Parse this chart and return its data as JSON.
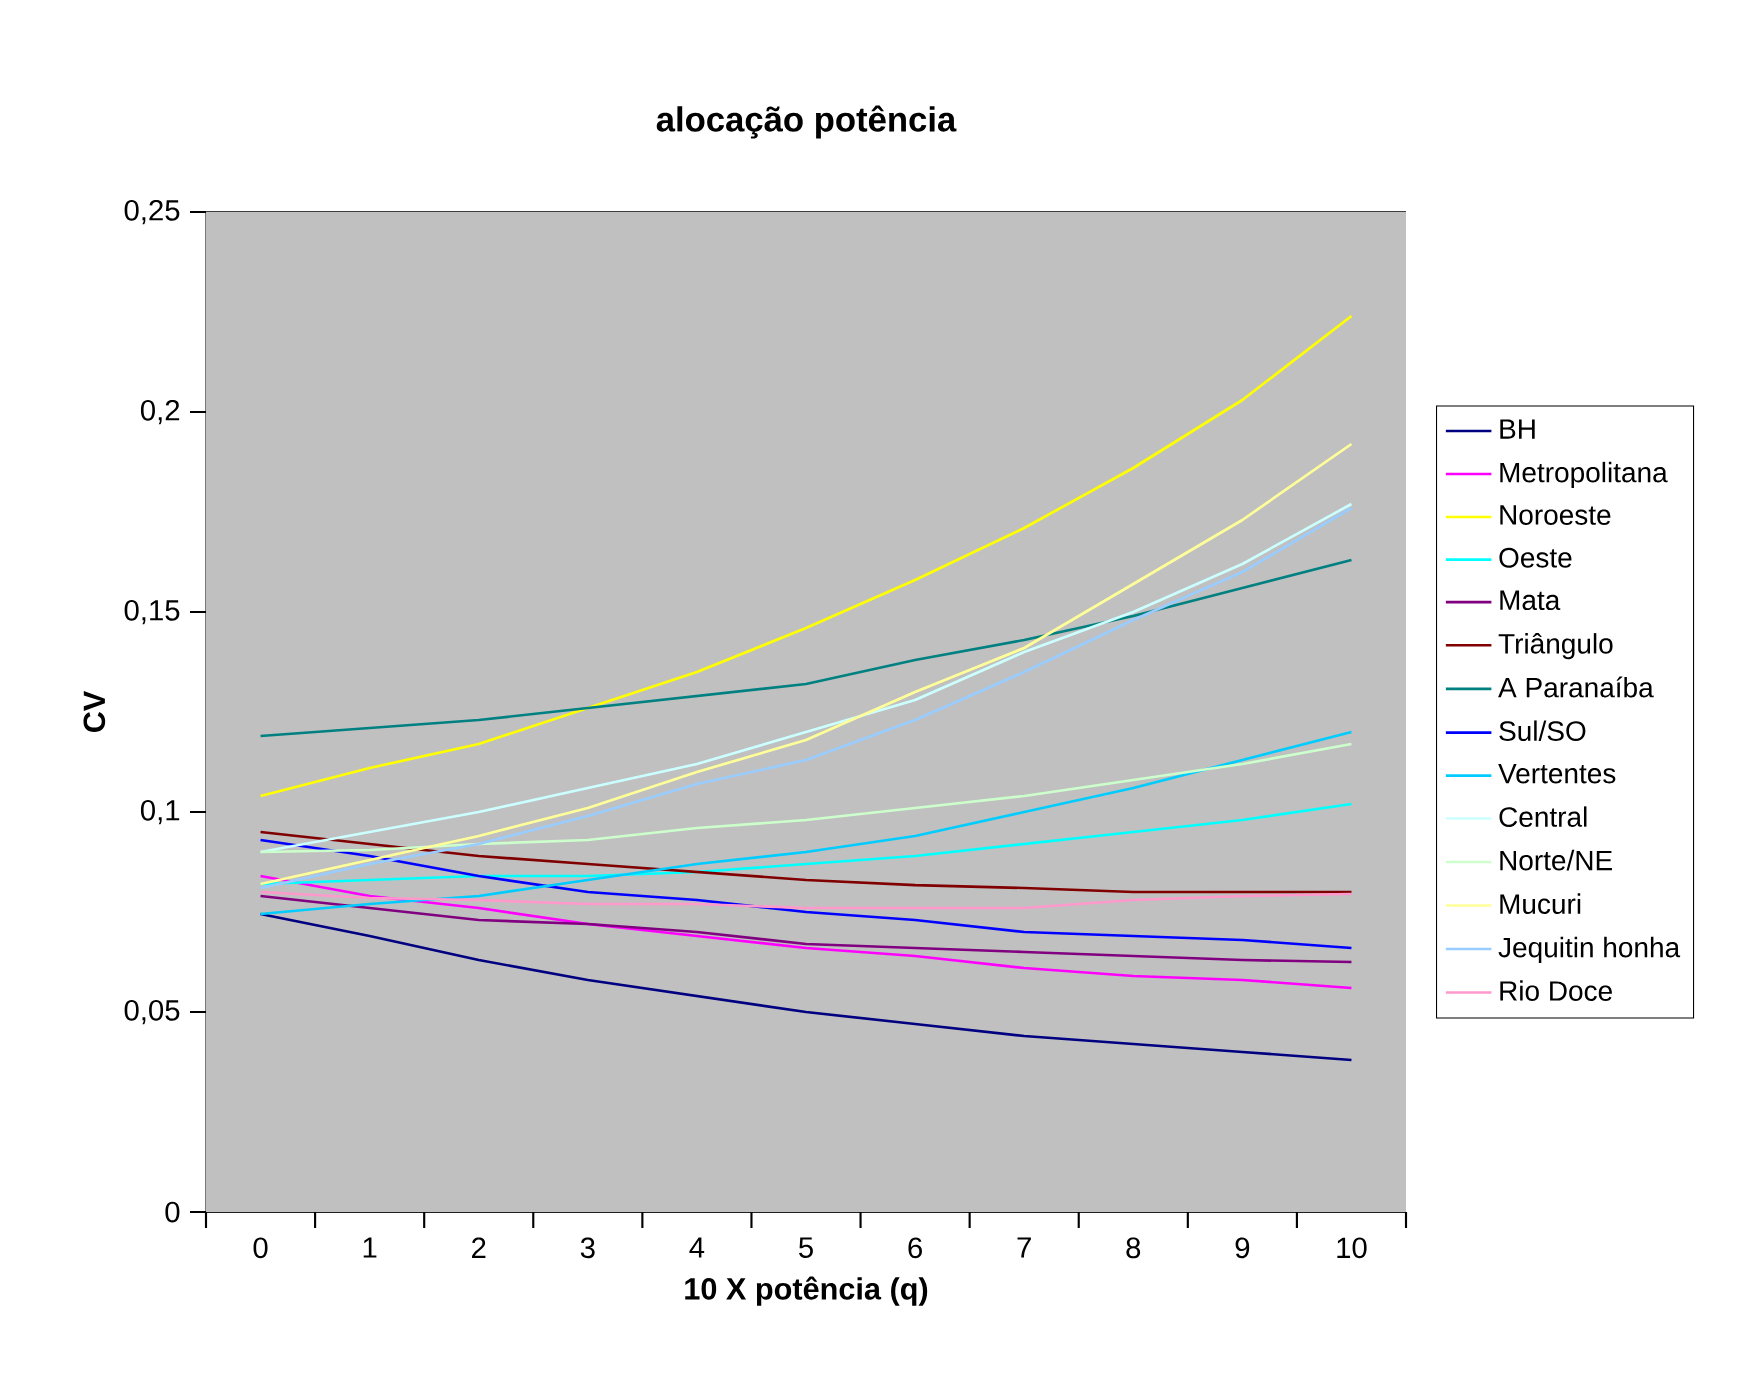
{
  "chart_data": {
    "type": "line",
    "title": "alocação potência",
    "xlabel": "10 X potência (q)",
    "ylabel": "CV",
    "categories": [
      "0",
      "1",
      "2",
      "3",
      "4",
      "5",
      "6",
      "7",
      "8",
      "9",
      "10"
    ],
    "ylim": [
      0,
      0.25
    ],
    "yticks": [
      0,
      {
        "value": 0.05,
        "label": "0,05"
      },
      {
        "value": 0.1,
        "label": "0,1"
      },
      {
        "value": 0.15,
        "label": "0,15"
      },
      {
        "value": 0.2,
        "label": "0,2"
      },
      {
        "value": 0.25,
        "label": "0,25"
      }
    ],
    "grid": "y",
    "legend": "right",
    "marker": "none",
    "line_style": "solid",
    "series": [
      {
        "name": "BH",
        "color": "#000080",
        "values": [
          0.0745,
          0.069,
          0.063,
          0.058,
          0.054,
          0.05,
          0.047,
          0.044,
          0.042,
          0.04,
          0.038
        ]
      },
      {
        "name": "Metropolitana",
        "color": "#ff00ff",
        "values": [
          0.084,
          0.079,
          0.076,
          0.072,
          0.069,
          0.066,
          0.064,
          0.061,
          0.059,
          0.058,
          0.056
        ]
      },
      {
        "name": "Noroeste",
        "color": "#ffff00",
        "values": [
          0.104,
          0.111,
          0.117,
          0.126,
          0.135,
          0.146,
          0.158,
          0.171,
          0.186,
          0.203,
          0.224
        ]
      },
      {
        "name": "Oeste",
        "color": "#00ffff",
        "values": [
          0.082,
          0.083,
          0.084,
          0.084,
          0.085,
          0.087,
          0.089,
          0.092,
          0.095,
          0.098,
          0.102
        ]
      },
      {
        "name": "Mata",
        "color": "#800080",
        "values": [
          0.079,
          0.076,
          0.073,
          0.072,
          0.07,
          0.067,
          0.066,
          0.065,
          0.064,
          0.063,
          0.0625
        ]
      },
      {
        "name": "Triângulo",
        "color": "#800000",
        "values": [
          0.095,
          0.092,
          0.089,
          0.087,
          0.085,
          0.083,
          0.0817,
          0.081,
          0.08,
          0.08,
          0.08
        ]
      },
      {
        "name": "A Paranaíba",
        "color": "#008080",
        "values": [
          0.119,
          0.121,
          0.123,
          0.126,
          0.129,
          0.132,
          0.138,
          0.143,
          0.149,
          0.156,
          0.163
        ]
      },
      {
        "name": "Sul/SO",
        "color": "#0000ff",
        "values": [
          0.093,
          0.089,
          0.084,
          0.08,
          0.078,
          0.075,
          0.073,
          0.07,
          0.069,
          0.068,
          0.066
        ]
      },
      {
        "name": "Vertentes",
        "color": "#00ccff",
        "values": [
          0.0745,
          0.077,
          0.079,
          0.083,
          0.087,
          0.09,
          0.094,
          0.1,
          0.106,
          0.113,
          0.12
        ]
      },
      {
        "name": "Central",
        "color": "#ccffff",
        "values": [
          0.09,
          0.095,
          0.1,
          0.106,
          0.112,
          0.12,
          0.128,
          0.14,
          0.15,
          0.162,
          0.177
        ]
      },
      {
        "name": "Norte/NE",
        "color": "#ccffcc",
        "values": [
          0.09,
          0.0905,
          0.092,
          0.093,
          0.096,
          0.098,
          0.101,
          0.104,
          0.108,
          0.112,
          0.117
        ]
      },
      {
        "name": "Mucuri",
        "color": "#ffff99",
        "values": [
          0.082,
          0.088,
          0.094,
          0.101,
          0.11,
          0.118,
          0.13,
          0.141,
          0.157,
          0.173,
          0.192
        ]
      },
      {
        "name": "Jequitin honha",
        "color": "#99ccff",
        "values": [
          0.081,
          0.087,
          0.092,
          0.099,
          0.107,
          0.113,
          0.123,
          0.135,
          0.148,
          0.16,
          0.176
        ]
      },
      {
        "name": "Rio Doce",
        "color": "#ff99cc",
        "values": [
          0.08,
          0.0785,
          0.078,
          0.077,
          0.077,
          0.076,
          0.076,
          0.076,
          0.078,
          0.079,
          0.0795
        ]
      }
    ]
  }
}
